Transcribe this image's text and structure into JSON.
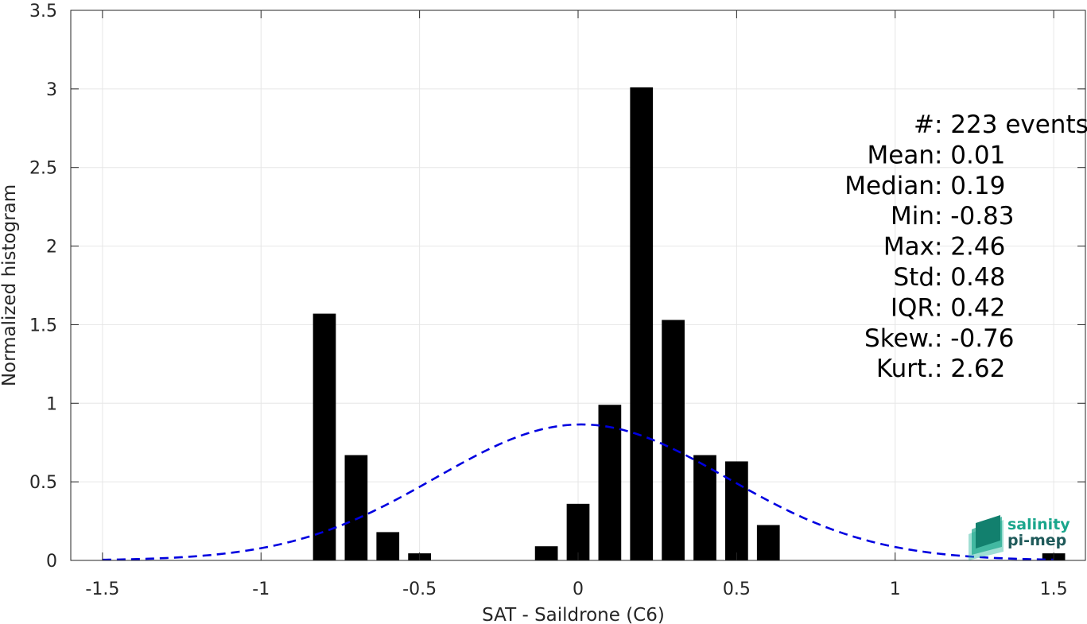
{
  "chart_data": {
    "type": "bar",
    "xlabel": "SAT - Saildrone (C6)",
    "ylabel": "Normalized histogram",
    "xlim": [
      -1.6,
      1.6
    ],
    "ylim": [
      0,
      3.5
    ],
    "xticks": [
      -1.5,
      -1,
      -0.5,
      0,
      0.5,
      1,
      1.5
    ],
    "xtick_labels": [
      "-1.5",
      "-1",
      "-0.5",
      "0",
      "0.5",
      "1",
      "1.5"
    ],
    "yticks": [
      0,
      0.5,
      1,
      1.5,
      2,
      2.5,
      3,
      3.5
    ],
    "ytick_labels": [
      "0",
      "0.5",
      "1",
      "1.5",
      "2",
      "2.5",
      "3",
      "3.5"
    ],
    "grid": true,
    "bin_width": 0.1,
    "bars": [
      {
        "x": -0.8,
        "value": 1.57
      },
      {
        "x": -0.7,
        "value": 0.67
      },
      {
        "x": -0.6,
        "value": 0.18
      },
      {
        "x": -0.5,
        "value": 0.045
      },
      {
        "x": -0.1,
        "value": 0.09
      },
      {
        "x": 0.0,
        "value": 0.36
      },
      {
        "x": 0.1,
        "value": 0.99
      },
      {
        "x": 0.2,
        "value": 3.01
      },
      {
        "x": 0.3,
        "value": 1.53
      },
      {
        "x": 0.4,
        "value": 0.67
      },
      {
        "x": 0.5,
        "value": 0.63
      },
      {
        "x": 0.6,
        "value": 0.225
      },
      {
        "x": 1.5,
        "value": 0.045
      }
    ],
    "fit_curve": {
      "style": "dashed",
      "color": "#0000e0",
      "mean": 0.01,
      "std": 0.46,
      "peak": 0.865,
      "x_range": [
        -1.5,
        1.5
      ]
    },
    "stats": [
      {
        "label": "#  ",
        "sep": ": ",
        "value": "223 events"
      },
      {
        "label": "Mean ",
        "sep": ": ",
        "value": "0.01"
      },
      {
        "label": "Median ",
        "sep": ": ",
        "value": "0.19"
      },
      {
        "label": "Min ",
        "sep": ": ",
        "value": "-0.83"
      },
      {
        "label": "Max ",
        "sep": ": ",
        "value": "2.46"
      },
      {
        "label": "Std ",
        "sep": ": ",
        "value": "0.48"
      },
      {
        "label": "IQR ",
        "sep": ": ",
        "value": "0.42"
      },
      {
        "label": "Skew. ",
        "sep": ": ",
        "value": "-0.76"
      },
      {
        "label": "Kurt. ",
        "sep": ": ",
        "value": "2.62"
      }
    ],
    "bar_color": "#000000"
  },
  "logo": {
    "line1": "salinity",
    "line2": "pi-mep",
    "color1": "#1aa68c",
    "color2": "#1f5a5a"
  }
}
